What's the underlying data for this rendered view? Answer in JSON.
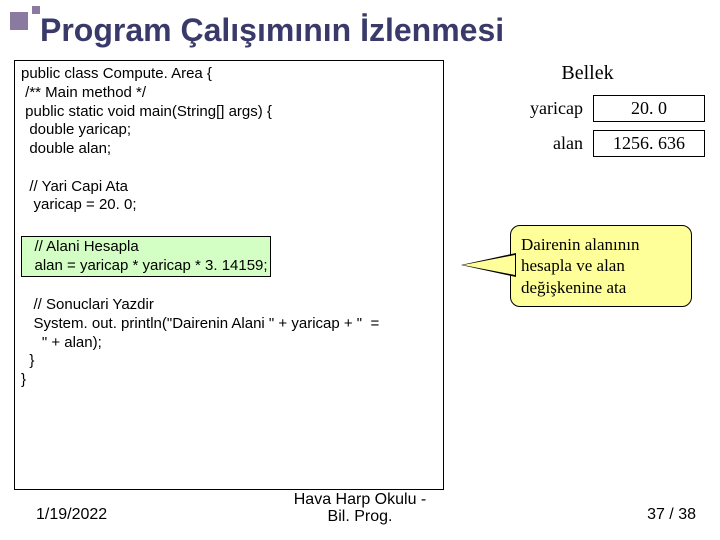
{
  "title": "Program Çalışımının İzlenmesi",
  "code": {
    "l1": "public class Compute. Area {",
    "l2": " /** Main method */",
    "l3": " public static void main(String[] args) {",
    "l4": "  double yaricap;",
    "l5": "  double alan;",
    "l6_blank": " ",
    "l7": "  // Yari Capi Ata",
    "l8": "   yaricap = 20. 0;",
    "l9_blank": " ",
    "l10a": "   // Alani Hesapla",
    "l10b": "   alan = yaricap * yaricap * 3. 14159;",
    "l12": "   // Sonuclari Yazdir",
    "l13": "   System. out. println(\"Dairenin Alani \" + yaricap + \"  =",
    "l13b": "     \" + alan);",
    "l14": "  }",
    "l15": "}"
  },
  "memory": {
    "title": "Bellek",
    "rows": [
      {
        "label": "yaricap",
        "value": "20. 0"
      },
      {
        "label": "alan",
        "value": "1256. 636"
      }
    ]
  },
  "callout": {
    "line1": "Dairenin alanının",
    "line2": "hesapla ve alan",
    "line3": "değişkenine ata"
  },
  "footer": {
    "left": "1/19/2022",
    "center1": "Hava Harp Okulu -",
    "center2": "Bil. Prog.",
    "right": "37 / 38"
  },
  "colors": {
    "title_color": "#3a3a6a",
    "decor_color": "#8a7aa0",
    "highlight_bg": "#d4ffc4",
    "callout_bg": "#ffff99"
  }
}
